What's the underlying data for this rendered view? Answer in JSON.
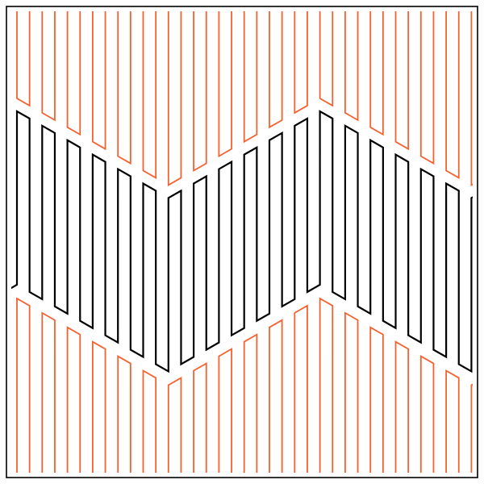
{
  "figure": {
    "bands": [
      {
        "name": "top-band",
        "color": "#f4622f"
      },
      {
        "name": "middle-band",
        "color": "#000000"
      },
      {
        "name": "bottom-band",
        "color": "#f4622f"
      }
    ],
    "frame_color": "#000000",
    "background": "#ffffff"
  }
}
